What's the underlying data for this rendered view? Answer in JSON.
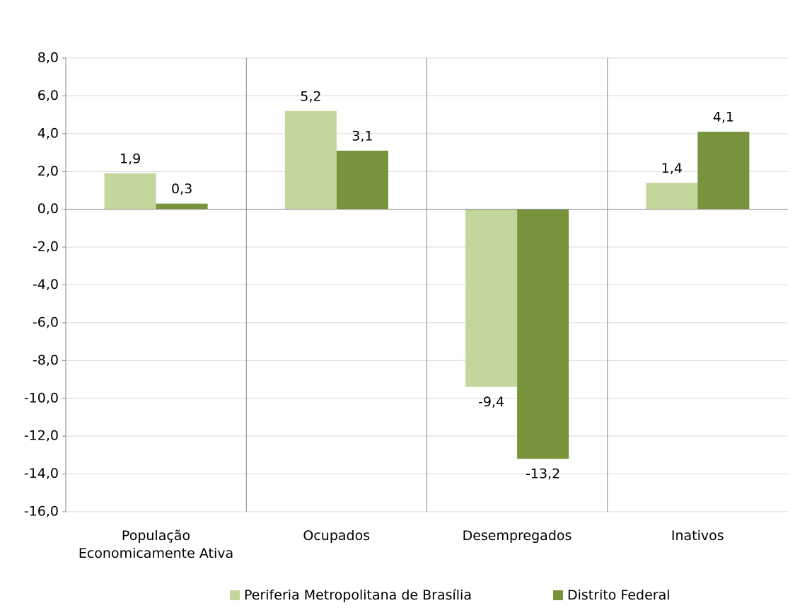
{
  "chart_data": {
    "type": "bar",
    "categories": [
      "População Economicamente Ativa",
      "Ocupados",
      "Desempregados",
      "Inativos"
    ],
    "series": [
      {
        "name": "Periferia Metropolitana de Brasília",
        "color": "#c3d69b",
        "values": [
          1.9,
          5.2,
          -9.4,
          1.4
        ],
        "value_labels": [
          "1,9",
          "5,2",
          "-9,4",
          "1,4"
        ]
      },
      {
        "name": "Distrito Federal",
        "color": "#77933c",
        "values": [
          0.3,
          3.1,
          -13.2,
          4.1
        ],
        "value_labels": [
          "0,3",
          "3,1",
          "-13,2",
          "4,1"
        ]
      }
    ],
    "ylim": [
      -16,
      8
    ],
    "yticks": [
      {
        "value": -16,
        "label": "-16,0"
      },
      {
        "value": -14,
        "label": "-14,0"
      },
      {
        "value": -12,
        "label": "-12,0"
      },
      {
        "value": -10,
        "label": "-10,0"
      },
      {
        "value": -8,
        "label": "-8,0"
      },
      {
        "value": -6,
        "label": "-6,0"
      },
      {
        "value": -4,
        "label": "-4,0"
      },
      {
        "value": -2,
        "label": "-2,0"
      },
      {
        "value": 0,
        "label": "0,0"
      },
      {
        "value": 2,
        "label": "2,0"
      },
      {
        "value": 4,
        "label": "4,0"
      },
      {
        "value": 6,
        "label": "6,0"
      },
      {
        "value": 8,
        "label": "8,0"
      }
    ],
    "grid": true,
    "legend": "bottom"
  }
}
